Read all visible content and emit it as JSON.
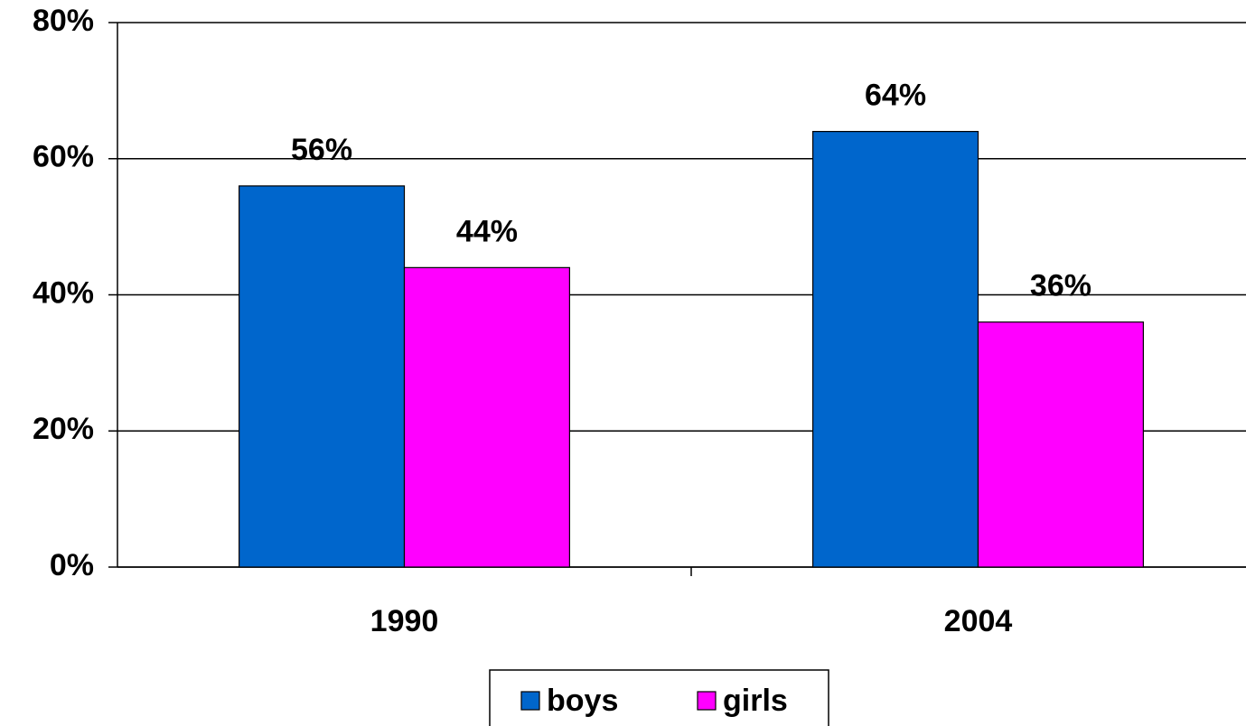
{
  "chart_data": {
    "type": "bar",
    "categories": [
      "1990",
      "2004"
    ],
    "series": [
      {
        "name": "boys",
        "color": "#0066cc",
        "values": [
          56,
          64
        ],
        "value_labels": [
          "56%",
          "64%"
        ]
      },
      {
        "name": "girls",
        "color": "#ff00ff",
        "values": [
          44,
          36
        ],
        "value_labels": [
          "44%",
          "36%"
        ]
      }
    ],
    "ylim": [
      0,
      80
    ],
    "yticks": [
      {
        "value": 0,
        "label": "0%"
      },
      {
        "value": 20,
        "label": "20%"
      },
      {
        "value": 40,
        "label": "40%"
      },
      {
        "value": 60,
        "label": "60%"
      },
      {
        "value": 80,
        "label": "80%"
      }
    ],
    "grid": true,
    "legend": "bottom"
  }
}
